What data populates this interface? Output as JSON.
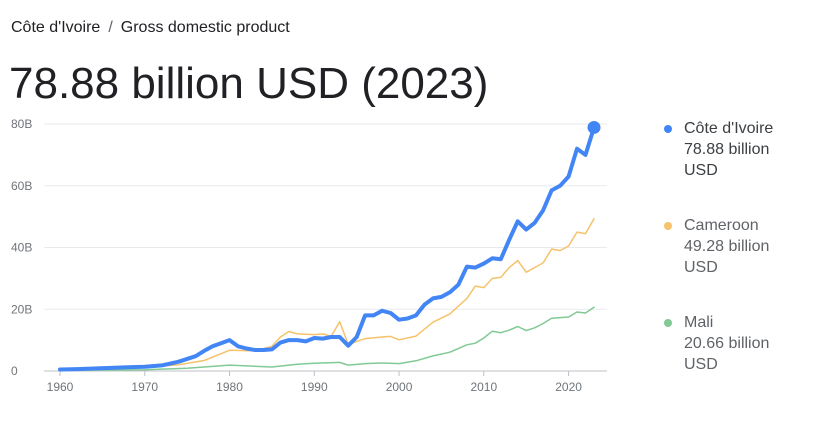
{
  "breadcrumb": {
    "country": "Côte d'Ivoire",
    "separator": "/",
    "indicator": "Gross domestic product"
  },
  "headline": "78.88 billion USD (2023)",
  "legend": [
    {
      "name": "Côte d'Ivoire",
      "value": "78.88 billion",
      "unit": "USD",
      "color": "#4285f4"
    },
    {
      "name": "Cameroon",
      "value": "49.28 billion",
      "unit": "USD",
      "color": "#f6c26b"
    },
    {
      "name": "Mali",
      "value": "20.66 billion",
      "unit": "USD",
      "color": "#81c995"
    }
  ],
  "chart_data": {
    "type": "line",
    "title": "",
    "xlabel": "",
    "ylabel": "",
    "xlim": [
      1960,
      2023
    ],
    "ylim": [
      0,
      80
    ],
    "y_ticks": [
      0,
      20,
      40,
      60,
      80
    ],
    "y_tick_labels": [
      "0",
      "20B",
      "40B",
      "60B",
      "80B"
    ],
    "x_ticks": [
      1960,
      1970,
      1980,
      1990,
      2000,
      2010,
      2020
    ],
    "x_tick_labels": [
      "1960",
      "1970",
      "1980",
      "1990",
      "2000",
      "2010",
      "2020"
    ],
    "grid": true,
    "legend_position": "right",
    "series": [
      {
        "name": "Côte d'Ivoire",
        "color": "#4285f4",
        "highlight": true,
        "x": [
          1960,
          1962,
          1964,
          1966,
          1968,
          1970,
          1972,
          1974,
          1976,
          1977,
          1978,
          1979,
          1980,
          1981,
          1982,
          1983,
          1984,
          1985,
          1986,
          1987,
          1988,
          1989,
          1990,
          1991,
          1992,
          1993,
          1994,
          1995,
          1996,
          1997,
          1998,
          1999,
          2000,
          2001,
          2002,
          2003,
          2004,
          2005,
          2006,
          2007,
          2008,
          2009,
          2010,
          2011,
          2012,
          2013,
          2014,
          2015,
          2016,
          2017,
          2018,
          2019,
          2020,
          2021,
          2022,
          2023
        ],
        "y": [
          0.5,
          0.6,
          0.8,
          1.0,
          1.2,
          1.4,
          1.8,
          3.0,
          4.8,
          6.5,
          8.0,
          9.0,
          10.0,
          8.0,
          7.3,
          6.8,
          6.8,
          7.0,
          9.2,
          10.0,
          10.0,
          9.6,
          10.7,
          10.5,
          11.0,
          11.0,
          8.2,
          11.0,
          18.0,
          18.0,
          19.5,
          18.8,
          16.6,
          17.0,
          18.0,
          21.5,
          23.5,
          24.0,
          25.5,
          28.0,
          33.8,
          33.5,
          34.8,
          36.5,
          36.2,
          42.5,
          48.5,
          45.8,
          48.0,
          52.0,
          58.5,
          60.0,
          63.0,
          72.0,
          70.0,
          78.88
        ]
      },
      {
        "name": "Cameroon",
        "color": "#f6c26b",
        "highlight": false,
        "x": [
          1960,
          1965,
          1970,
          1974,
          1977,
          1980,
          1983,
          1985,
          1986,
          1987,
          1988,
          1990,
          1991,
          1992,
          1993,
          1994,
          1996,
          1998,
          1999,
          2000,
          2002,
          2004,
          2006,
          2008,
          2009,
          2010,
          2011,
          2012,
          2013,
          2014,
          2015,
          2016,
          2017,
          2018,
          2019,
          2020,
          2021,
          2022,
          2023
        ],
        "y": [
          0.6,
          0.8,
          1.1,
          2.0,
          3.4,
          6.7,
          6.5,
          8.0,
          11.0,
          12.8,
          12.0,
          11.8,
          12.0,
          11.2,
          16.0,
          8.6,
          10.5,
          11.0,
          11.2,
          10.1,
          11.3,
          15.8,
          18.5,
          23.5,
          27.5,
          27.0,
          30.0,
          30.3,
          33.5,
          35.8,
          32.0,
          33.5,
          35.0,
          39.5,
          39.0,
          40.5,
          45.0,
          44.5,
          49.28
        ]
      },
      {
        "name": "Mali",
        "color": "#81c995",
        "highlight": false,
        "x": [
          1960,
          1970,
          1975,
          1980,
          1985,
          1988,
          1990,
          1993,
          1994,
          1996,
          1998,
          2000,
          2002,
          2004,
          2006,
          2008,
          2009,
          2010,
          2011,
          2012,
          2013,
          2014,
          2015,
          2016,
          2017,
          2018,
          2019,
          2020,
          2021,
          2022,
          2023
        ],
        "y": [
          0.3,
          0.4,
          0.9,
          1.9,
          1.3,
          2.2,
          2.5,
          2.8,
          1.9,
          2.4,
          2.6,
          2.4,
          3.3,
          4.9,
          6.1,
          8.5,
          9.0,
          10.7,
          12.9,
          12.4,
          13.2,
          14.4,
          13.1,
          14.0,
          15.4,
          17.1,
          17.3,
          17.5,
          19.1,
          18.8,
          20.66
        ]
      }
    ]
  }
}
